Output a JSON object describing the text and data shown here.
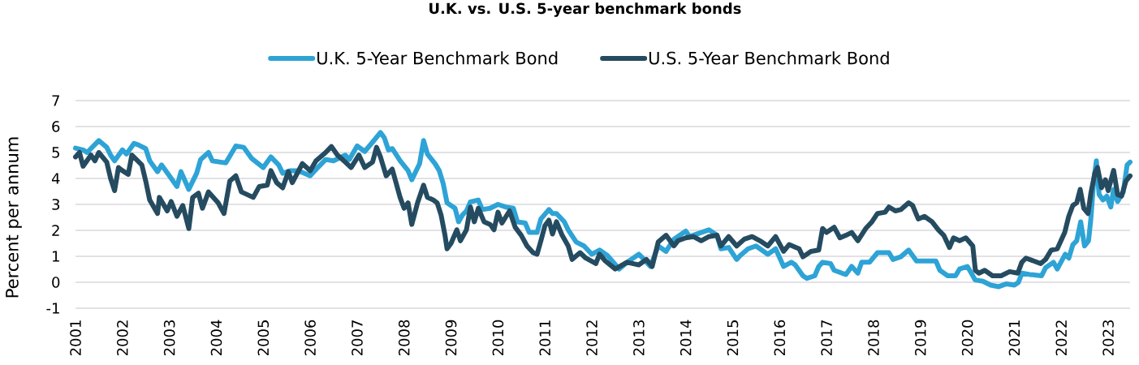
{
  "chart_data": {
    "type": "line",
    "title": "U.K. vs. U.S. 5-year benchmark bonds",
    "ylabel": "Percent per annum",
    "legend": "top",
    "grid": "y",
    "xlim": [
      "2001-01-01",
      "2023-06-20"
    ],
    "ylim": [
      -1,
      7
    ],
    "xticks": [
      "2001",
      "2002",
      "2003",
      "2004",
      "2005",
      "2006",
      "2007",
      "2008",
      "2009",
      "2010",
      "2011",
      "2012",
      "2013",
      "2014",
      "2015",
      "2016",
      "2017",
      "2018",
      "2019",
      "2020",
      "2021",
      "2022",
      "2023"
    ],
    "yticks": [
      -1,
      0,
      1,
      2,
      3,
      4,
      5,
      6,
      7
    ],
    "series": [
      {
        "name": "U.K. 5-Year Benchmark Bond",
        "color": "#2ea3d6",
        "x": [
          "2001-01-01",
          "2001-03-01",
          "2001-04-01",
          "2001-07-01",
          "2001-09-01",
          "2001-10-01",
          "2001-11-01",
          "2002-01-01",
          "2002-02-01",
          "2002-04-01",
          "2002-05-01",
          "2002-07-01",
          "2002-08-01",
          "2002-10-01",
          "2002-11-01",
          "2003-01-01",
          "2003-03-01",
          "2003-04-01",
          "2003-06-01",
          "2003-08-01",
          "2003-09-01",
          "2003-11-01",
          "2003-12-01",
          "2004-02-01",
          "2004-03-15",
          "2004-06-01",
          "2004-08-01",
          "2004-10-01",
          "2005-01-01",
          "2005-03-01",
          "2005-05-01",
          "2005-06-01",
          "2005-08-01",
          "2005-10-01",
          "2006-01-01",
          "2006-03-01",
          "2006-05-01",
          "2006-07-01",
          "2006-10-01",
          "2006-11-01",
          "2007-01-01",
          "2007-03-01",
          "2007-05-01",
          "2007-07-01",
          "2007-08-01",
          "2007-09-01",
          "2007-10-01",
          "2007-12-01",
          "2008-02-01",
          "2008-03-01",
          "2008-05-01",
          "2008-06-01",
          "2008-07-01",
          "2008-09-01",
          "2008-10-01",
          "2008-11-01",
          "2008-12-01",
          "2009-02-01",
          "2009-03-01",
          "2009-04-01",
          "2009-05-01",
          "2009-06-01",
          "2009-08-01",
          "2009-09-01",
          "2009-11-01",
          "2010-01-01",
          "2010-03-01",
          "2010-05-01",
          "2010-06-01",
          "2010-08-01",
          "2010-09-01",
          "2010-11-01",
          "2010-12-01",
          "2011-02-01",
          "2011-03-01",
          "2011-04-01",
          "2011-06-01",
          "2011-07-01",
          "2011-09-01",
          "2011-11-01",
          "2012-01-01",
          "2012-03-01",
          "2012-05-01",
          "2012-08-01",
          "2012-10-01",
          "2013-01-01",
          "2013-02-01",
          "2013-04-01",
          "2013-06-01",
          "2013-08-01",
          "2013-10-01",
          "2014-01-01",
          "2014-02-01",
          "2014-05-01",
          "2014-07-01",
          "2014-09-01",
          "2014-10-01",
          "2014-12-01",
          "2015-02-01",
          "2015-03-01",
          "2015-05-01",
          "2015-07-01",
          "2015-10-01",
          "2015-12-01",
          "2016-02-01",
          "2016-04-01",
          "2016-05-01",
          "2016-07-01",
          "2016-08-01",
          "2016-10-01",
          "2016-11-01",
          "2016-12-01",
          "2017-02-01",
          "2017-03-01",
          "2017-05-01",
          "2017-06-01",
          "2017-07-15",
          "2017-09-01",
          "2017-10-01",
          "2017-12-01",
          "2018-02-01",
          "2018-05-01",
          "2018-06-01",
          "2018-08-01",
          "2018-10-01",
          "2018-12-01",
          "2019-02-01",
          "2019-05-01",
          "2019-06-01",
          "2019-08-01",
          "2019-10-01",
          "2019-11-01",
          "2020-01-01",
          "2020-02-01",
          "2020-03-01",
          "2020-05-01",
          "2020-07-01",
          "2020-09-01",
          "2020-11-01",
          "2021-01-01",
          "2021-02-01",
          "2021-03-01",
          "2021-05-01",
          "2021-08-01",
          "2021-09-01",
          "2021-11-01",
          "2021-12-01",
          "2022-02-01",
          "2022-03-01",
          "2022-04-01",
          "2022-05-01",
          "2022-06-01",
          "2022-07-01",
          "2022-08-01",
          "2022-08-19",
          "2022-09-10",
          "2022-10-01",
          "2022-10-22",
          "2022-11-21",
          "2022-12-21",
          "2023-01-21",
          "2023-02-12",
          "2023-03-15",
          "2023-04-28",
          "2023-05-28",
          "2023-06-20"
        ],
        "values": [
          5.17,
          5.1,
          5.0,
          5.46,
          5.2,
          4.9,
          4.68,
          5.1,
          4.94,
          5.35,
          5.3,
          5.15,
          4.68,
          4.26,
          4.52,
          4.1,
          3.69,
          4.26,
          3.58,
          4.2,
          4.73,
          5.0,
          4.68,
          4.63,
          4.6,
          5.25,
          5.2,
          4.78,
          4.42,
          4.83,
          4.52,
          4.2,
          4.3,
          4.3,
          4.1,
          4.42,
          4.73,
          4.68,
          4.9,
          4.73,
          5.25,
          5.04,
          5.4,
          5.77,
          5.56,
          5.1,
          5.15,
          4.68,
          4.3,
          3.95,
          4.57,
          5.46,
          4.94,
          4.55,
          4.3,
          3.8,
          3.06,
          2.85,
          2.33,
          2.6,
          2.75,
          3.1,
          3.17,
          2.8,
          2.85,
          3.0,
          2.9,
          2.85,
          2.33,
          2.28,
          1.92,
          1.92,
          2.44,
          2.8,
          2.65,
          2.65,
          2.33,
          2.02,
          1.55,
          1.4,
          1.08,
          1.24,
          1.03,
          0.51,
          0.77,
          1.08,
          0.93,
          0.61,
          1.4,
          1.19,
          1.66,
          1.97,
          1.76,
          1.92,
          2.02,
          1.81,
          1.29,
          1.34,
          0.88,
          1.03,
          1.29,
          1.4,
          1.08,
          1.29,
          0.61,
          0.77,
          0.67,
          0.25,
          0.15,
          0.25,
          0.61,
          0.77,
          0.72,
          0.46,
          0.35,
          0.3,
          0.61,
          0.35,
          0.77,
          0.77,
          1.14,
          1.14,
          0.88,
          0.98,
          1.24,
          0.82,
          0.82,
          0.82,
          0.46,
          0.25,
          0.25,
          0.51,
          0.61,
          0.35,
          0.09,
          0.04,
          -0.11,
          -0.17,
          -0.06,
          -0.11,
          -0.01,
          0.35,
          0.3,
          0.25,
          0.56,
          0.77,
          0.51,
          1.08,
          0.93,
          1.45,
          1.6,
          2.33,
          1.4,
          1.6,
          2.44,
          3.9,
          4.68,
          3.38,
          3.17,
          3.32,
          2.9,
          3.58,
          3.11,
          3.48,
          4.52,
          4.63
        ]
      },
      {
        "name": "U.S. 5-Year Benchmark Bond",
        "color": "#254b60",
        "x": [
          "2001-01-01",
          "2001-02-01",
          "2001-03-01",
          "2001-05-01",
          "2001-06-01",
          "2001-07-01",
          "2001-09-01",
          "2001-10-01",
          "2001-11-01",
          "2001-12-01",
          "2002-01-01",
          "2002-02-15",
          "2002-03-15",
          "2002-06-01",
          "2002-07-01",
          "2002-08-01",
          "2002-10-01",
          "2002-10-15",
          "2002-12-15",
          "2003-01-15",
          "2003-03-01",
          "2003-04-15",
          "2003-06-01",
          "2003-07-01",
          "2003-08-15",
          "2003-09-15",
          "2003-11-01",
          "2004-01-15",
          "2004-03-01",
          "2004-04-15",
          "2004-06-01",
          "2004-07-15",
          "2004-10-15",
          "2004-12-01",
          "2005-02-01",
          "2005-03-01",
          "2005-04-15",
          "2005-06-01",
          "2005-07-15",
          "2005-08-15",
          "2005-11-01",
          "2006-01-01",
          "2006-02-15",
          "2006-05-01",
          "2006-06-15",
          "2006-08-01",
          "2006-10-01",
          "2006-11-15",
          "2007-01-15",
          "2007-03-01",
          "2007-05-01",
          "2007-06-01",
          "2007-07-01",
          "2007-08-15",
          "2007-10-01",
          "2007-12-01",
          "2008-01-01",
          "2008-02-01",
          "2008-03-01",
          "2008-04-15",
          "2008-06-01",
          "2008-07-01",
          "2008-08-15",
          "2008-09-15",
          "2008-10-15",
          "2008-11-15",
          "2008-12-01",
          "2009-01-01",
          "2009-02-15",
          "2009-03-15",
          "2009-05-01",
          "2009-06-01",
          "2009-07-01",
          "2009-08-01",
          "2009-09-15",
          "2009-11-01",
          "2009-12-01",
          "2010-01-01",
          "2010-02-01",
          "2010-04-01",
          "2010-05-15",
          "2010-07-01",
          "2010-08-15",
          "2010-10-01",
          "2010-11-01",
          "2010-12-01",
          "2011-01-01",
          "2011-02-01",
          "2011-03-01",
          "2011-04-01",
          "2011-05-15",
          "2011-07-01",
          "2011-08-01",
          "2011-10-01",
          "2011-11-15",
          "2012-02-01",
          "2012-03-01",
          "2012-04-15",
          "2012-07-01",
          "2012-10-01",
          "2013-01-01",
          "2013-03-01",
          "2013-04-15",
          "2013-06-01",
          "2013-08-01",
          "2013-10-01",
          "2013-11-01",
          "2014-01-01",
          "2014-03-01",
          "2014-05-01",
          "2014-07-01",
          "2014-09-01",
          "2014-10-01",
          "2014-12-01",
          "2015-02-01",
          "2015-04-01",
          "2015-06-01",
          "2015-08-01",
          "2015-10-01",
          "2015-12-01",
          "2016-02-01",
          "2016-03-15",
          "2016-06-01",
          "2016-07-01",
          "2016-09-01",
          "2016-11-01",
          "2016-12-01",
          "2017-01-01",
          "2017-03-01",
          "2017-04-15",
          "2017-06-01",
          "2017-07-15",
          "2017-09-01",
          "2017-11-01",
          "2017-12-20",
          "2018-02-01",
          "2018-04-01",
          "2018-05-01",
          "2018-06-20",
          "2018-08-01",
          "2018-10-01",
          "2018-11-01",
          "2018-12-15",
          "2019-02-01",
          "2019-04-01",
          "2019-05-20",
          "2019-07-01",
          "2019-08-15",
          "2019-09-15",
          "2019-11-01",
          "2019-12-20",
          "2020-02-12",
          "2020-03-03",
          "2020-04-01",
          "2020-05-15",
          "2020-07-15",
          "2020-09-20",
          "2020-11-25",
          "2021-01-28",
          "2021-02-28",
          "2021-04-01",
          "2021-06-01",
          "2021-07-25",
          "2021-09-01",
          "2021-10-15",
          "2021-12-01",
          "2022-01-28",
          "2022-02-28",
          "2022-04-01",
          "2022-05-01",
          "2022-05-28",
          "2022-06-25",
          "2022-07-28",
          "2022-08-19",
          "2022-09-19",
          "2022-10-10",
          "2022-11-10",
          "2022-12-10",
          "2023-01-01",
          "2023-02-12",
          "2023-03-15",
          "2023-04-15",
          "2023-05-19",
          "2023-06-20"
        ],
        "values": [
          4.83,
          5.0,
          4.47,
          4.9,
          4.68,
          5.0,
          4.63,
          4.0,
          3.53,
          4.42,
          4.3,
          4.16,
          4.9,
          4.52,
          3.9,
          3.17,
          2.65,
          3.27,
          2.75,
          3.11,
          2.54,
          2.96,
          2.07,
          3.27,
          3.43,
          2.85,
          3.48,
          3.06,
          2.65,
          3.9,
          4.1,
          3.48,
          3.27,
          3.69,
          3.74,
          4.3,
          3.84,
          3.64,
          4.26,
          3.84,
          4.57,
          4.3,
          4.68,
          5.0,
          5.23,
          4.9,
          4.63,
          4.42,
          4.9,
          4.42,
          4.63,
          5.2,
          4.83,
          4.1,
          4.36,
          3.27,
          2.85,
          3.06,
          2.23,
          3.06,
          3.74,
          3.27,
          3.17,
          3.06,
          2.6,
          1.81,
          1.29,
          1.5,
          2.02,
          1.6,
          2.02,
          2.9,
          2.33,
          2.85,
          2.33,
          2.23,
          2.02,
          2.7,
          2.28,
          2.75,
          2.12,
          1.81,
          1.4,
          1.14,
          1.08,
          1.6,
          2.18,
          2.39,
          1.86,
          2.33,
          1.81,
          1.4,
          0.88,
          1.14,
          0.93,
          0.72,
          1.08,
          0.82,
          0.51,
          0.77,
          0.67,
          0.88,
          0.61,
          1.55,
          1.81,
          1.4,
          1.6,
          1.71,
          1.76,
          1.6,
          1.76,
          1.81,
          1.4,
          1.76,
          1.4,
          1.66,
          1.76,
          1.6,
          1.4,
          1.76,
          1.19,
          1.45,
          1.29,
          0.98,
          1.19,
          1.24,
          2.07,
          1.92,
          2.12,
          1.71,
          1.81,
          1.92,
          1.6,
          2.07,
          2.33,
          2.65,
          2.7,
          2.9,
          2.75,
          2.8,
          3.06,
          2.96,
          2.44,
          2.54,
          2.33,
          2.02,
          1.81,
          1.34,
          1.71,
          1.6,
          1.71,
          1.4,
          0.46,
          0.35,
          0.46,
          0.25,
          0.25,
          0.41,
          0.35,
          0.77,
          0.93,
          0.82,
          0.72,
          0.88,
          1.24,
          1.29,
          1.92,
          2.54,
          2.96,
          3.06,
          3.58,
          2.85,
          2.65,
          3.43,
          4.2,
          4.42,
          3.64,
          3.95,
          3.53,
          4.31,
          3.38,
          3.32,
          3.9,
          4.1
        ]
      }
    ]
  }
}
